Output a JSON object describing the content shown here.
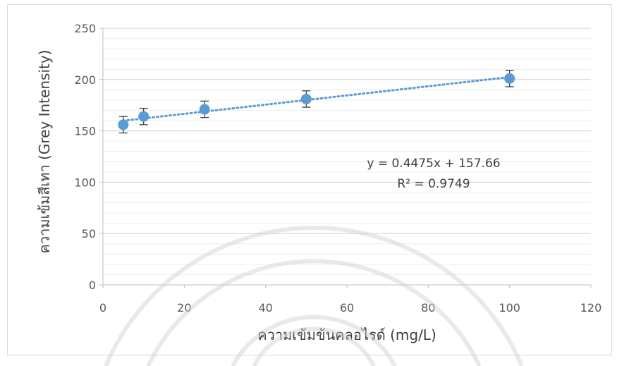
{
  "chart_data": {
    "type": "scatter",
    "x": [
      5,
      10,
      25,
      50,
      100
    ],
    "y": [
      156,
      164,
      171,
      181,
      201
    ],
    "error": [
      8,
      8,
      8,
      8,
      8
    ],
    "xlabel": "ความเข้มข้นคลอไรด์ (mg/L)",
    "ylabel": "ความเข้มสีเทา (Grey Intensity)",
    "xlim": [
      0,
      120
    ],
    "ylim": [
      0,
      250
    ],
    "xticks": [
      0,
      20,
      40,
      60,
      80,
      100,
      120
    ],
    "yticks": [
      0,
      50,
      100,
      150,
      200,
      250
    ],
    "trendline": {
      "slope": 0.4475,
      "intercept": 157.66,
      "equation": "y = 0.4475x + 157.66",
      "r2_label": "R² = 0.9749"
    },
    "grid": true,
    "colors": {
      "points": "#5b9bd5",
      "trendline": "#5b9bd5",
      "error_bars": "#404040",
      "grid": "#d9d9d9"
    }
  }
}
